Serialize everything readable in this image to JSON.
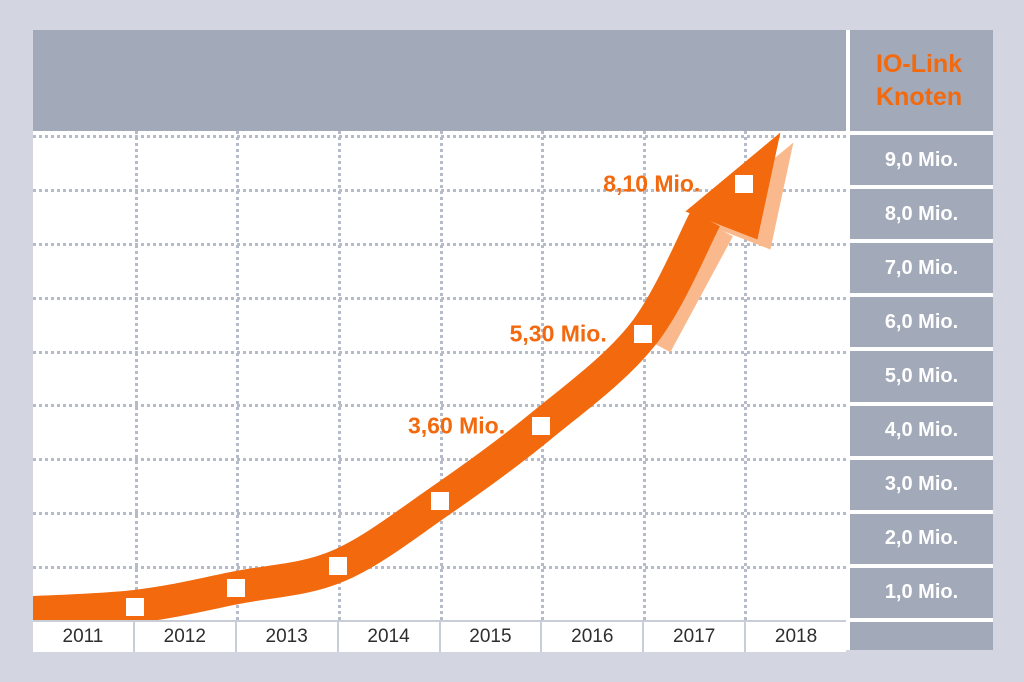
{
  "title": {
    "line1": "IO-Link",
    "line2": "Knoten"
  },
  "colors": {
    "background": "#d3d6e0",
    "panel": "#a2a9b8",
    "plot_background": "#ffffff",
    "orange": "#f2690e",
    "orange_light": "#f9b98c",
    "grid_dot": "#b5bbc8",
    "separator": "#c9cdd7",
    "year_text": "#2e2e2e",
    "axis_text": "#ffffff"
  },
  "chart_data": {
    "type": "line",
    "title": "IO-Link Knoten",
    "x_axis_labels": [
      "2011",
      "2012",
      "2013",
      "2014",
      "2015",
      "2016",
      "2017",
      "2018"
    ],
    "y_axis_labels": [
      "9,0 Mio.",
      "8,0 Mio.",
      "7,0 Mio.",
      "6,0 Mio.",
      "5,0 Mio.",
      "4,0 Mio.",
      "3,0 Mio.",
      "2,0 Mio.",
      "1,0 Mio."
    ],
    "ylabel": "IO-Link Knoten (Mio.)",
    "xlabel": "",
    "ylim": [
      0,
      9
    ],
    "grid": true,
    "legend": false,
    "points": [
      {
        "year": 2011,
        "value": 0.25
      },
      {
        "year": 2012,
        "value": 0.6
      },
      {
        "year": 2013,
        "value": 1.0
      },
      {
        "year": 2014,
        "value": 2.2
      },
      {
        "year": 2015,
        "value": 3.6
      },
      {
        "year": 2016,
        "value": 5.3
      },
      {
        "year": 2017,
        "value": 8.1
      }
    ],
    "point_labels": [
      {
        "year": 2015,
        "text": "3,60 Mio."
      },
      {
        "year": 2016,
        "text": "5,30 Mio."
      },
      {
        "year": 2017,
        "text": "8,10 Mio."
      }
    ]
  }
}
